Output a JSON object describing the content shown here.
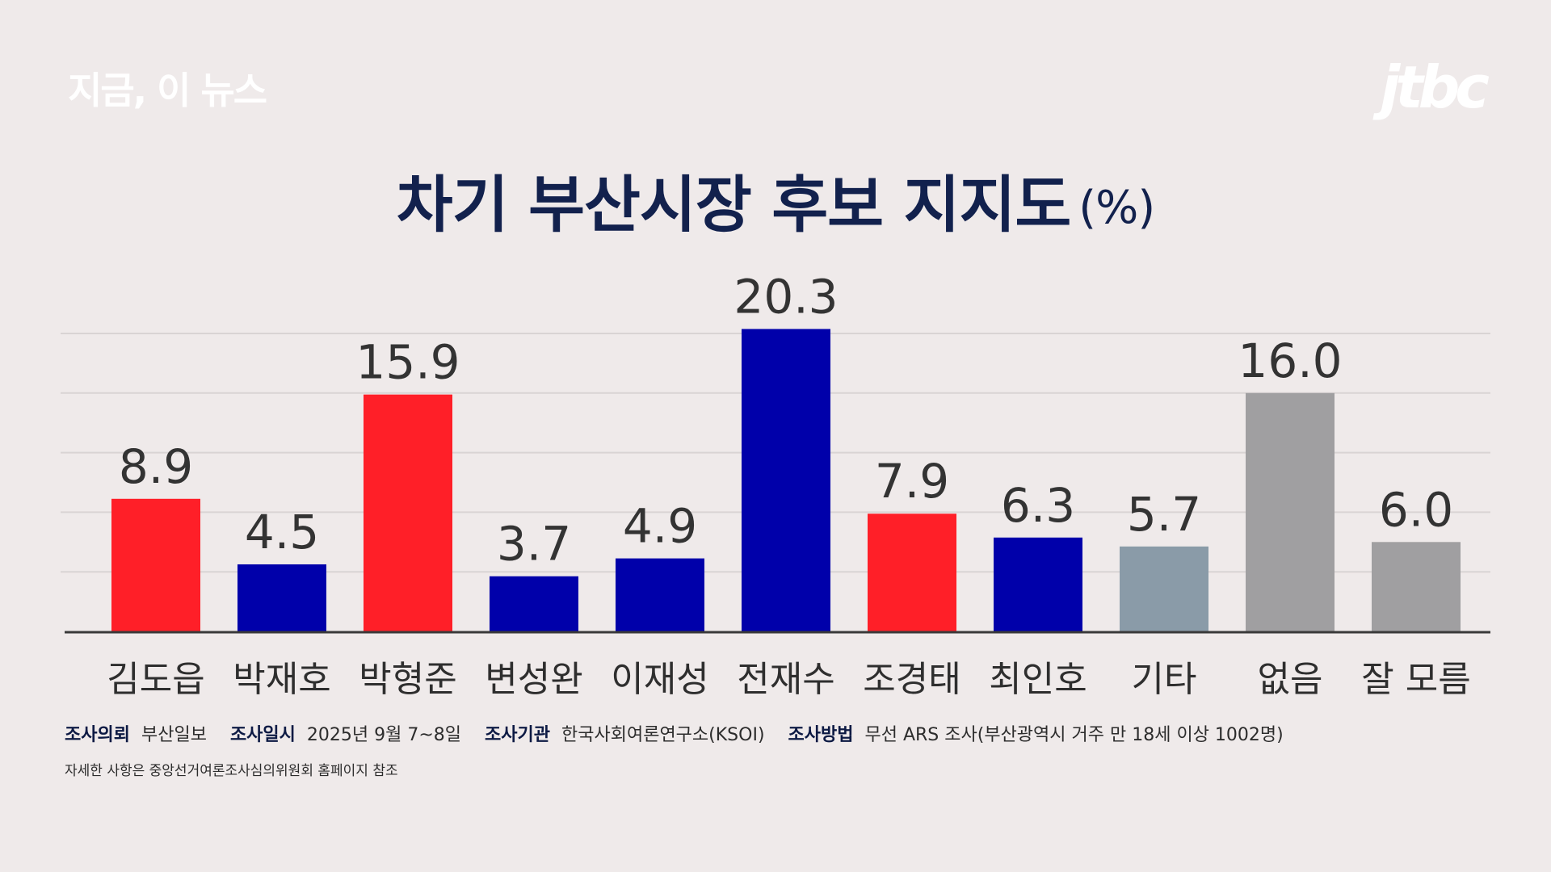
{
  "header": {
    "program_logo": "지금, 이 뉴스",
    "broadcaster_logo": "jtbc"
  },
  "title": {
    "main": "차기 부산시장 후보 지지도",
    "unit": "(%)"
  },
  "colors": {
    "red": "#ff1f28",
    "blue": "#0000aa",
    "bluegray": "#8a9ba8",
    "gray": "#a09fa1",
    "background": "#efeaea",
    "title": "#12214d",
    "axis": "#3a3a3a",
    "grid": "#d9d4d4"
  },
  "chart_data": {
    "type": "bar",
    "title": "차기 부산시장 후보 지지도",
    "unit": "(%)",
    "categories": [
      "김도읍",
      "박재호",
      "박형준",
      "변성완",
      "이재성",
      "전재수",
      "조경태",
      "최인호",
      "기타",
      "없음",
      "잘 모름"
    ],
    "values": [
      8.9,
      4.5,
      15.9,
      3.7,
      4.9,
      20.3,
      7.9,
      6.3,
      5.7,
      16.0,
      6.0
    ],
    "value_labels": [
      "8.9",
      "4.5",
      "15.9",
      "3.7",
      "4.9",
      "20.3",
      "7.9",
      "6.3",
      "5.7",
      "16.0",
      "6.0"
    ],
    "bar_colors": [
      "red",
      "blue",
      "red",
      "blue",
      "blue",
      "blue",
      "red",
      "blue",
      "bluegray",
      "gray",
      "gray"
    ],
    "ylim": [
      0,
      20
    ],
    "grid": true,
    "legend": false
  },
  "footnote": {
    "items": [
      {
        "key": "조사의뢰",
        "value": "부산일보"
      },
      {
        "key": "조사일시",
        "value": "2025년 9월 7~8일"
      },
      {
        "key": "조사기관",
        "value": "한국사회여론연구소(KSOI)"
      },
      {
        "key": "조사방법",
        "value": "무선 ARS 조사(부산광역시 거주 만 18세 이상 1002명)"
      }
    ],
    "note": "자세한 사항은 중앙선거여론조사심의위원회 홈페이지 참조"
  }
}
